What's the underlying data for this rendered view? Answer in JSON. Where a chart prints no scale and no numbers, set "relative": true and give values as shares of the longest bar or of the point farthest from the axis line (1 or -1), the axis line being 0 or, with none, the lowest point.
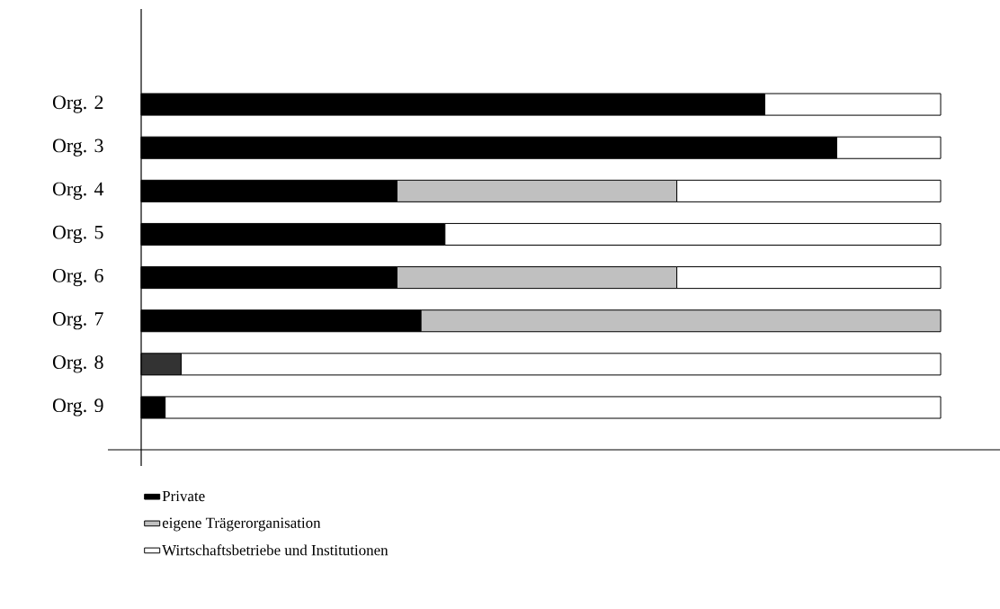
{
  "chart_data": {
    "type": "bar",
    "orientation": "horizontal",
    "stacked": true,
    "relative": true,
    "legend": "bottom",
    "categories": [
      "Org. 2",
      "Org. 3",
      "Org. 4",
      "Org. 5",
      "Org. 6",
      "Org. 7",
      "Org. 8",
      "Org. 9"
    ],
    "series": [
      {
        "name": "Private",
        "color": "#000000",
        "colors": [
          "#000000",
          "#000000",
          "#000000",
          "#000000",
          "#000000",
          "#000000",
          "#333333",
          "#000000"
        ],
        "values": [
          0.78,
          0.87,
          0.32,
          0.38,
          0.32,
          0.35,
          0.05,
          0.03
        ]
      },
      {
        "name": "eigene Trägerorganisation",
        "color": "#c0c0c0",
        "values": [
          null,
          null,
          0.35,
          null,
          0.35,
          0.65,
          null,
          null
        ]
      },
      {
        "name": "Wirtschaftsbetriebe und Institutionen",
        "color": "#ffffff",
        "values": [
          0.22,
          0.13,
          0.33,
          0.62,
          0.33,
          null,
          0.95,
          0.97
        ]
      }
    ]
  }
}
